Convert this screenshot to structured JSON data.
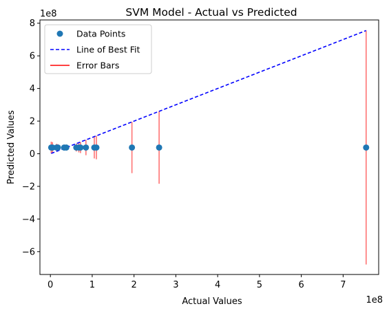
{
  "chart_data": {
    "type": "scatter",
    "title": "SVM Model - Actual vs Predicted",
    "xlabel": "Actual Values",
    "ylabel": "Predicted Values",
    "x_offset_label": "1e8",
    "y_offset_label": "1e8",
    "xlim": [
      -0.25,
      7.85
    ],
    "ylim": [
      -7.4,
      8.2
    ],
    "x_ticks": [
      0,
      1,
      2,
      3,
      4,
      5,
      6,
      7
    ],
    "x_tick_labels": [
      "0",
      "1",
      "2",
      "3",
      "4",
      "5",
      "6",
      "7"
    ],
    "y_ticks": [
      -6,
      -4,
      -2,
      0,
      2,
      4,
      6,
      8
    ],
    "y_tick_labels": [
      "−6",
      "−4",
      "−2",
      "0",
      "2",
      "4",
      "6",
      "8"
    ],
    "grid": false,
    "legend_position": "upper-left",
    "series": [
      {
        "name": "Data Points",
        "kind": "scatter",
        "color": "#1f77b4",
        "x": [
          0.02,
          0.05,
          0.15,
          0.18,
          0.33,
          0.38,
          0.62,
          0.68,
          0.72,
          0.85,
          1.05,
          1.1,
          1.95,
          2.6,
          7.55
        ],
        "y": [
          0.38,
          0.38,
          0.38,
          0.38,
          0.38,
          0.38,
          0.38,
          0.38,
          0.38,
          0.38,
          0.38,
          0.38,
          0.38,
          0.38,
          0.38
        ]
      },
      {
        "name": "Line of Best Fit",
        "kind": "line",
        "color": "#0000ff",
        "dash": "dashed",
        "x": [
          0.02,
          7.55
        ],
        "y": [
          0.02,
          7.55
        ]
      },
      {
        "name": "Error Bars",
        "kind": "errorbar",
        "color": "#ff0000",
        "x": [
          0.02,
          0.05,
          0.15,
          0.18,
          0.33,
          0.38,
          0.62,
          0.68,
          0.72,
          0.85,
          1.05,
          1.1,
          1.95,
          2.6,
          7.55
        ],
        "y": [
          0.38,
          0.38,
          0.38,
          0.38,
          0.38,
          0.38,
          0.38,
          0.38,
          0.38,
          0.38,
          0.38,
          0.38,
          0.38,
          0.38,
          0.38
        ],
        "err": [
          0.36,
          0.33,
          0.23,
          0.2,
          0.05,
          0.0,
          0.24,
          0.3,
          0.34,
          0.47,
          0.67,
          0.72,
          1.57,
          2.22,
          7.17
        ]
      }
    ]
  }
}
